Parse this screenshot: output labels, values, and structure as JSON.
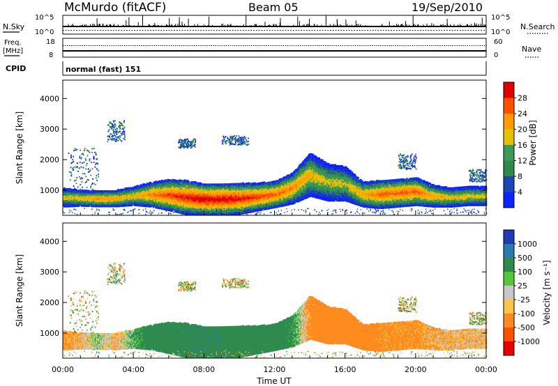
{
  "header": {
    "title": "McMurdo (fitACF)",
    "beam": "Beam 05",
    "date": "19/Sep/2010"
  },
  "noise_panel": {
    "left_label": "N.Sky",
    "right_label": "N.Search",
    "left_ticks": [
      "10^5",
      "10^0"
    ],
    "right_ticks": [
      "10^5",
      "10^0"
    ]
  },
  "freq_panel": {
    "left_label_1": "Freq.",
    "left_label_2": "[MHz]",
    "right_label": "Nave",
    "left_ticks": [
      "18",
      "8"
    ],
    "right_ticks": [
      "60",
      "0"
    ]
  },
  "cpid_panel": {
    "label": "CPID",
    "text": "normal (fast) 151"
  },
  "power_panel": {
    "ylabel": "Slant Range [km]",
    "y_ticks": [
      "1000",
      "2000",
      "3000",
      "4000"
    ],
    "colorbar_label": "Power [dB]",
    "colorbar_ticks": [
      "28",
      "24",
      "20",
      "16",
      "12",
      "8",
      "4"
    ],
    "colorbar_colors": [
      "#e00000",
      "#ff5000",
      "#ff9a00",
      "#e8c000",
      "#3d9a5a",
      "#2e8a4a",
      "#1b46b4",
      "#0c22ff"
    ]
  },
  "velocity_panel": {
    "ylabel": "Slant Range [km]",
    "y_ticks": [
      "1000",
      "2000",
      "3000",
      "4000"
    ],
    "colorbar_label": "Velocity [m s⁻¹]",
    "colorbar_ticks": [
      "1000",
      "500",
      "100",
      "25",
      "-25",
      "-100",
      "-500",
      "-1000"
    ],
    "colorbar_colors": [
      "#1e3cb4",
      "#2a7ab0",
      "#2f8a4e",
      "#55c83a",
      "#c8c8c8",
      "#ffc24a",
      "#ff8a1e",
      "#ff5000",
      "#e80000"
    ]
  },
  "x_axis": {
    "ticks": [
      "00:00",
      "04:00",
      "08:00",
      "12:00",
      "16:00",
      "20:00",
      "00:00"
    ],
    "label": "Time UT"
  },
  "chart_data": {
    "type": "heatmap",
    "x_range_hours": [
      0,
      24
    ],
    "y_range_km": [
      180,
      4600
    ],
    "echo_band": {
      "hours": [
        0,
        1,
        2,
        3,
        4,
        5,
        6,
        7,
        8,
        9,
        10,
        11,
        12,
        13,
        14,
        15,
        16,
        17,
        18,
        19,
        20,
        21,
        22,
        23,
        24
      ],
      "center_km": [
        800,
        780,
        760,
        770,
        850,
        900,
        880,
        800,
        740,
        740,
        760,
        820,
        900,
        1100,
        1550,
        1300,
        1250,
        900,
        900,
        950,
        1000,
        850,
        800,
        850,
        850
      ],
      "width_km": [
        300,
        250,
        250,
        260,
        300,
        400,
        500,
        550,
        500,
        500,
        500,
        450,
        420,
        500,
        700,
        600,
        550,
        400,
        450,
        450,
        450,
        350,
        300,
        300,
        300
      ],
      "peak_power_db": [
        16,
        18,
        22,
        20,
        18,
        22,
        26,
        28,
        30,
        30,
        28,
        26,
        24,
        22,
        18,
        16,
        16,
        20,
        24,
        24,
        24,
        20,
        18,
        18,
        16
      ],
      "velocity_m_s": [
        -100,
        -50,
        25,
        -60,
        60,
        150,
        200,
        250,
        250,
        250,
        200,
        200,
        150,
        100,
        -100,
        -200,
        -200,
        -150,
        -100,
        -100,
        -100,
        -60,
        -50,
        -50,
        -40
      ]
    },
    "scatter_clusters": [
      {
        "hours": [
          0.3,
          2.0
        ],
        "range_km": [
          1000,
          2400
        ]
      },
      {
        "hours": [
          2.5,
          3.5
        ],
        "range_km": [
          2600,
          3300
        ]
      },
      {
        "hours": [
          6.5,
          7.5
        ],
        "range_km": [
          2400,
          2700
        ]
      },
      {
        "hours": [
          9.0,
          10.5
        ],
        "range_km": [
          2500,
          2800
        ]
      },
      {
        "hours": [
          19.0,
          20.0
        ],
        "range_km": [
          1700,
          2200
        ]
      },
      {
        "hours": [
          23.0,
          24.0
        ],
        "range_km": [
          1300,
          1700
        ]
      }
    ]
  }
}
